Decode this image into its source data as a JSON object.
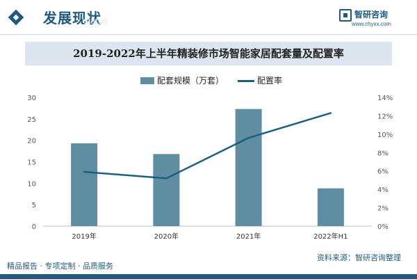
{
  "header": {
    "title": "发展现状",
    "watermark_text": "status",
    "logo_name": "智研咨询",
    "logo_url": "www.chyxx.com"
  },
  "chart_data": {
    "type": "bar",
    "title": "2019-2022年上半年精装修市场智能家居配套量及配置率",
    "categories": [
      "2019年",
      "2020年",
      "2021年",
      "2022年H1"
    ],
    "series": [
      {
        "name": "配套规模（万套）",
        "kind": "bar",
        "axis": "left",
        "values": [
          19.3,
          16.8,
          27.3,
          8.8
        ],
        "color": "#5f8ea3"
      },
      {
        "name": "配置率",
        "kind": "line",
        "axis": "right",
        "values": [
          5.9,
          5.2,
          9.6,
          12.3
        ],
        "color": "#1b5f7f"
      }
    ],
    "y_left": {
      "min": 0,
      "max": 30,
      "step": 5,
      "ticks": [
        "0",
        "5",
        "10",
        "15",
        "20",
        "25",
        "30"
      ]
    },
    "y_right": {
      "min": 0,
      "max": 14,
      "step": 2,
      "ticks": [
        "0%",
        "2%",
        "4%",
        "6%",
        "8%",
        "10%",
        "12%",
        "14%"
      ]
    },
    "grid": false,
    "legend_position": "top-center"
  },
  "footer": {
    "left": "精品报告 · 专项定制 · 品质服务",
    "source": "资料来源：智研咨询整理"
  }
}
